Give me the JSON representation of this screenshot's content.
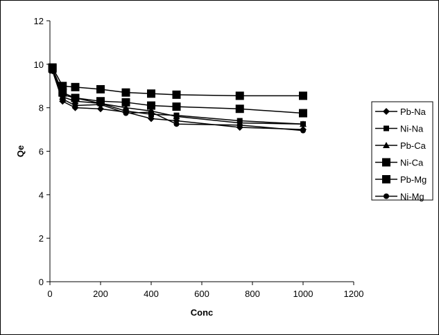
{
  "chart_data": {
    "type": "line",
    "title": "",
    "xlabel": "Conc",
    "ylabel": "Qe",
    "xlim": [
      0,
      1200
    ],
    "ylim": [
      0,
      12
    ],
    "x_ticks": [
      "0",
      "200",
      "400",
      "600",
      "800",
      "1000",
      "1200"
    ],
    "y_ticks": [
      "0",
      "2",
      "4",
      "6",
      "8",
      "10",
      "12"
    ],
    "grid": false,
    "legend_position": "right",
    "x": [
      10,
      50,
      100,
      200,
      300,
      400,
      500,
      750,
      1000
    ],
    "series": [
      {
        "name": "Pb-Na",
        "marker": "diamond",
        "size": "small",
        "values": [
          9.7,
          8.3,
          8.0,
          7.95,
          7.8,
          7.5,
          7.4,
          7.1,
          7.0
        ]
      },
      {
        "name": "Ni-Na",
        "marker": "square",
        "size": "small",
        "values": [
          9.75,
          8.6,
          8.45,
          8.2,
          7.85,
          7.7,
          7.65,
          7.4,
          7.25
        ]
      },
      {
        "name": "Pb-Ca",
        "marker": "triangle",
        "size": "small",
        "values": [
          9.7,
          8.5,
          8.3,
          8.2,
          8.0,
          7.85,
          7.6,
          7.3,
          7.25
        ]
      },
      {
        "name": "Ni-Ca",
        "marker": "square",
        "size": "large",
        "values": [
          9.85,
          9.0,
          8.95,
          8.85,
          8.7,
          8.65,
          8.6,
          8.55,
          8.55
        ]
      },
      {
        "name": "Pb-Mg",
        "marker": "square",
        "size": "large",
        "values": [
          9.8,
          8.7,
          8.45,
          8.3,
          8.25,
          8.1,
          8.05,
          7.95,
          7.75
        ]
      },
      {
        "name": "Ni-Mg",
        "marker": "circle",
        "size": "small",
        "values": [
          9.7,
          8.4,
          8.1,
          8.15,
          7.75,
          7.8,
          7.25,
          7.2,
          6.95
        ]
      }
    ]
  }
}
